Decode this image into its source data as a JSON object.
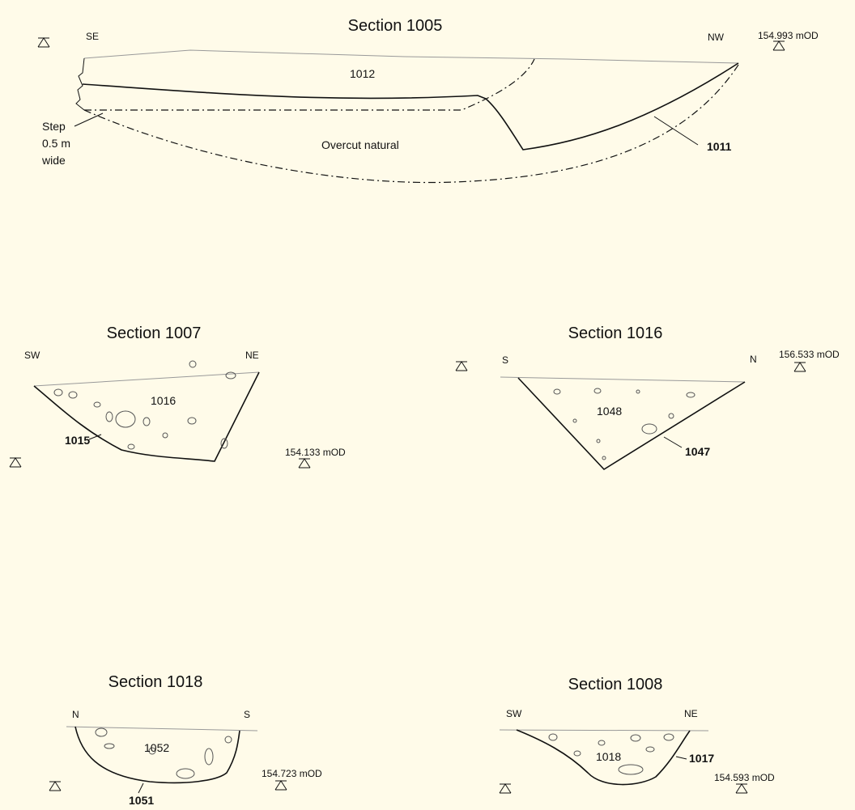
{
  "section_1005": {
    "title": "Section 1005",
    "orient_left": "SE",
    "orient_right": "NW",
    "od_label": "154.993 mOD",
    "fill_label": "1012",
    "note_label": "Overcut natural",
    "step_lines": [
      "Step",
      "0.5 m",
      "wide"
    ],
    "cut_label": "1011"
  },
  "section_1007": {
    "title": "Section 1007",
    "orient_left": "SW",
    "orient_right": "NE",
    "od_label": "154.133 mOD",
    "fill_label": "1016",
    "cut_label": "1015"
  },
  "section_1016": {
    "title": "Section 1016",
    "orient_left": "S",
    "orient_right": "N",
    "od_label": "156.533 mOD",
    "fill_label": "1048",
    "cut_label": "1047"
  },
  "section_1018": {
    "title": "Section 1018",
    "orient_left": "N",
    "orient_right": "S",
    "od_label": "154.723 mOD",
    "fill_label": "1052",
    "cut_label": "1051"
  },
  "section_1008": {
    "title": "Section 1008",
    "orient_left": "SW",
    "orient_right": "NE",
    "od_label": "154.593 mOD",
    "fill_label": "1018",
    "cut_label": "1017"
  }
}
